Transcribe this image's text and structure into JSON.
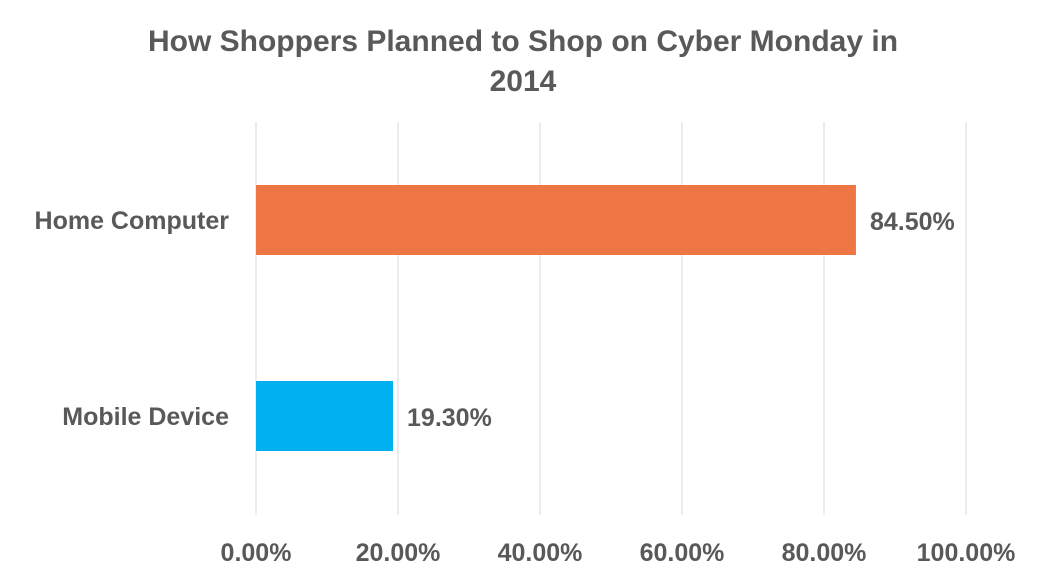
{
  "chart_data": {
    "type": "bar",
    "orientation": "horizontal",
    "title_lines": [
      "How Shoppers Planned to Shop on Cyber Monday in",
      "2014"
    ],
    "categories": [
      "Home Computer",
      "Mobile Device"
    ],
    "values": [
      84.5,
      19.3
    ],
    "value_labels": [
      "84.50%",
      "19.30%"
    ],
    "colors": [
      "#ED7644",
      "#00B0F0"
    ],
    "xlim": [
      0,
      100
    ],
    "x_ticks": [
      0,
      20,
      40,
      60,
      80,
      100
    ],
    "x_tick_labels": [
      "0.00%",
      "20.00%",
      "40.00%",
      "60.00%",
      "80.00%",
      "100.00%"
    ],
    "grid": true,
    "legend": "none"
  }
}
